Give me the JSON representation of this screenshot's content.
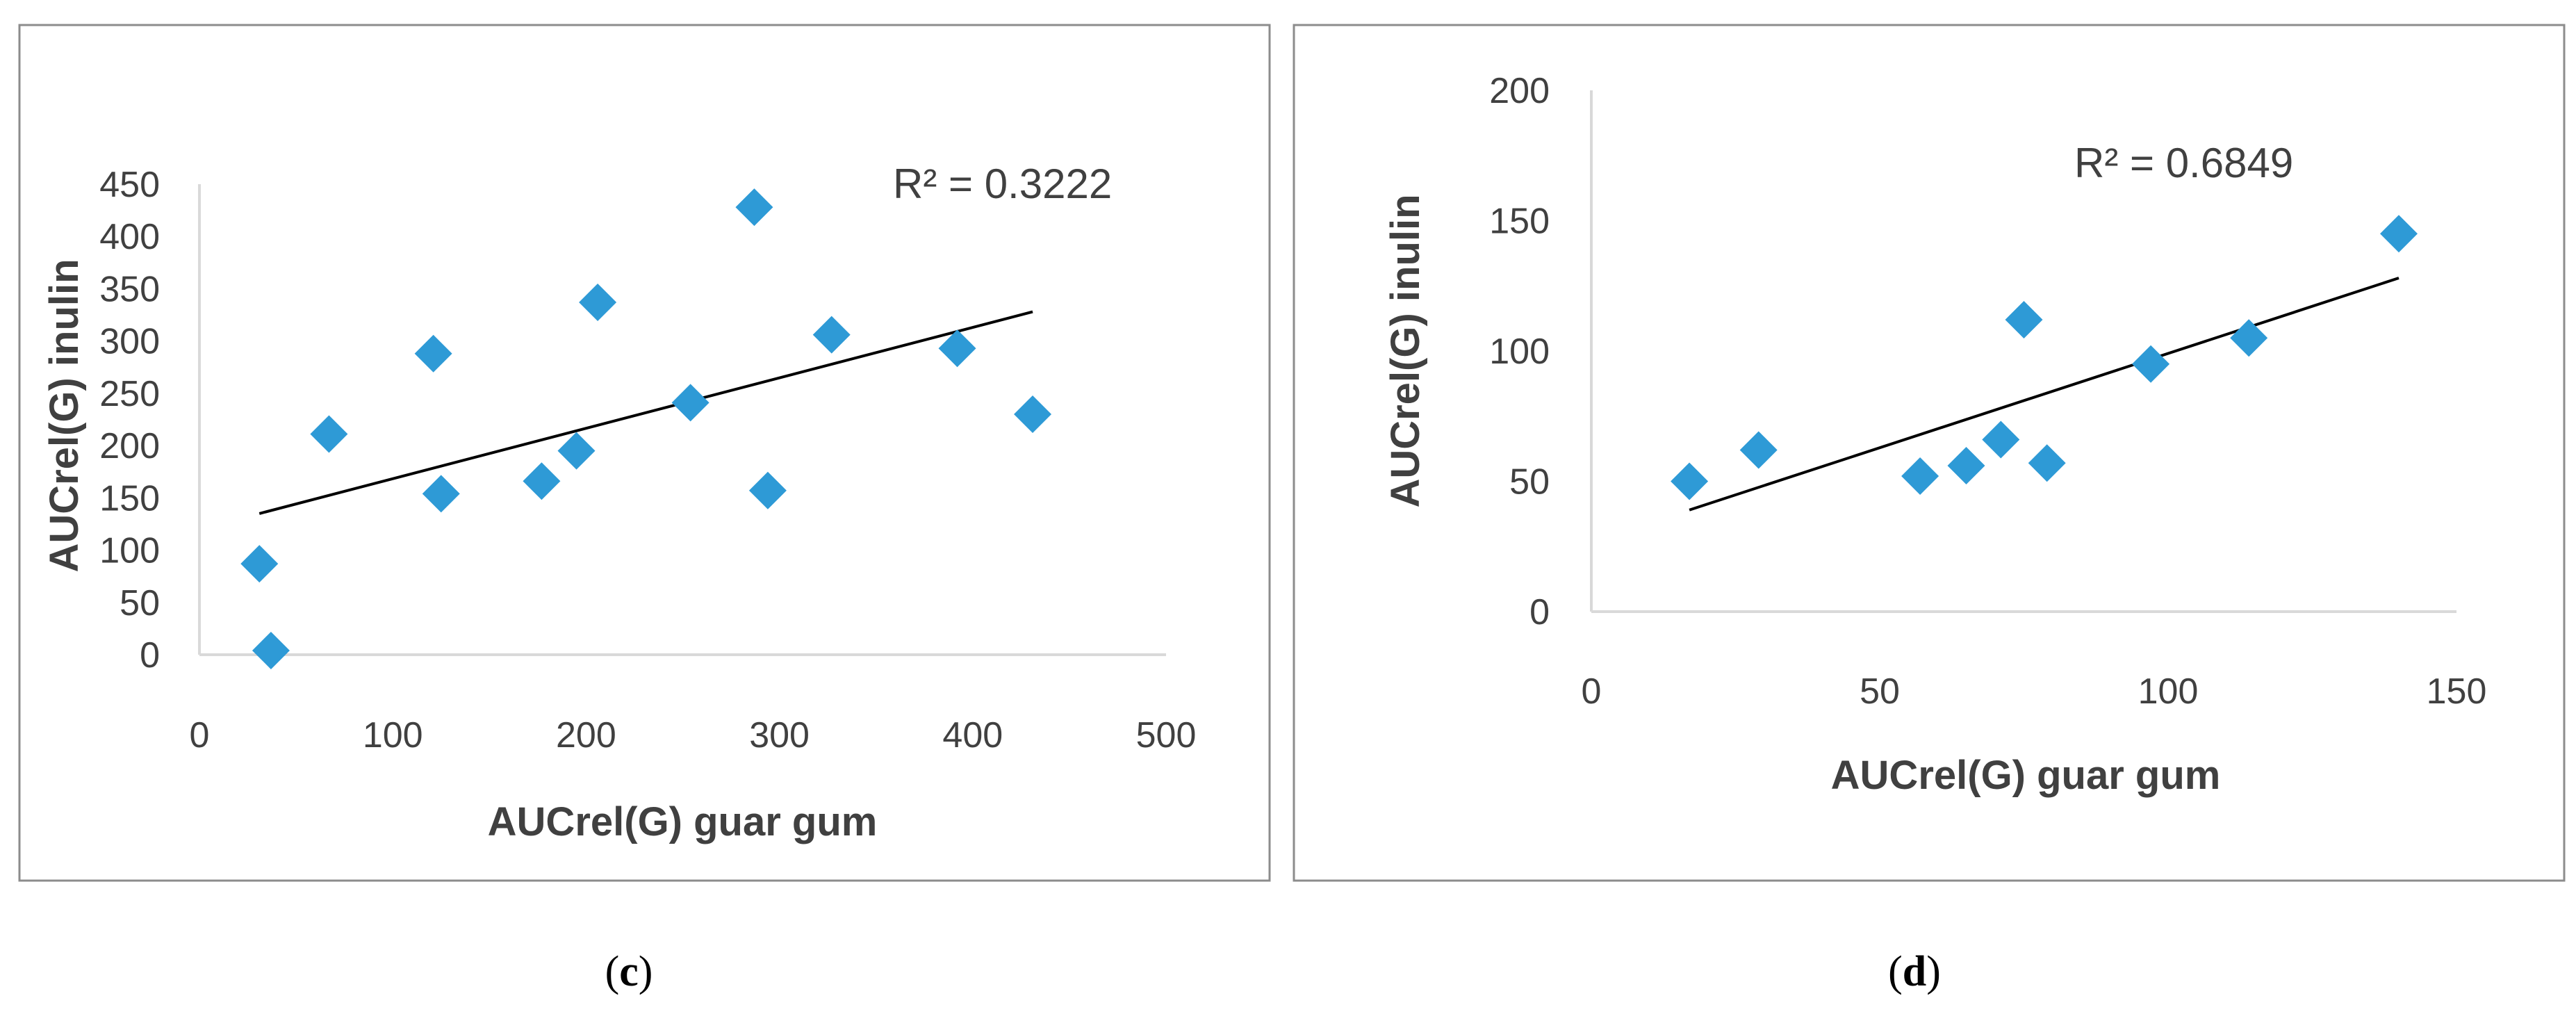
{
  "colors": {
    "marker": "#2e9ad6",
    "trendline": "#000000",
    "text": "#404040"
  },
  "chart_data": [
    {
      "type": "scatter",
      "panel_label": "c",
      "xlabel": "AUCrel(G) guar gum",
      "ylabel": "AUCrel(G) inulin",
      "annotation": "R² = 0.3222",
      "xlim": [
        0,
        500
      ],
      "ylim": [
        0,
        450
      ],
      "xticks": [
        0,
        100,
        200,
        300,
        400,
        500
      ],
      "yticks": [
        0,
        50,
        100,
        150,
        200,
        250,
        300,
        350,
        400,
        450
      ],
      "legend": "none",
      "grid": false,
      "points": [
        {
          "x": 31,
          "y": 87
        },
        {
          "x": 37,
          "y": 4
        },
        {
          "x": 67,
          "y": 211
        },
        {
          "x": 121,
          "y": 288
        },
        {
          "x": 125,
          "y": 154
        },
        {
          "x": 177,
          "y": 166
        },
        {
          "x": 195,
          "y": 195
        },
        {
          "x": 206,
          "y": 337
        },
        {
          "x": 254,
          "y": 241
        },
        {
          "x": 287,
          "y": 428
        },
        {
          "x": 294,
          "y": 157
        },
        {
          "x": 327,
          "y": 306
        },
        {
          "x": 392,
          "y": 293
        },
        {
          "x": 431,
          "y": 230
        }
      ],
      "trendline": {
        "x": [
          31,
          431
        ],
        "y": [
          135,
          328
        ]
      }
    },
    {
      "type": "scatter",
      "panel_label": "d",
      "xlabel": "AUCrel(G) guar gum",
      "ylabel": "AUCrel(G) inulin",
      "annotation": "R² = 0.6849",
      "xlim": [
        0,
        150
      ],
      "ylim": [
        0,
        200
      ],
      "xticks": [
        0,
        50,
        100,
        150
      ],
      "yticks": [
        0,
        50,
        100,
        150,
        200
      ],
      "legend": "none",
      "grid": false,
      "points": [
        {
          "x": 17,
          "y": 50
        },
        {
          "x": 29,
          "y": 62
        },
        {
          "x": 57,
          "y": 52
        },
        {
          "x": 65,
          "y": 56
        },
        {
          "x": 71,
          "y": 66
        },
        {
          "x": 75,
          "y": 112
        },
        {
          "x": 79,
          "y": 57
        },
        {
          "x": 97,
          "y": 95
        },
        {
          "x": 114,
          "y": 105
        },
        {
          "x": 140,
          "y": 145
        }
      ],
      "trendline": {
        "x": [
          17,
          140
        ],
        "y": [
          39,
          128
        ]
      }
    }
  ]
}
